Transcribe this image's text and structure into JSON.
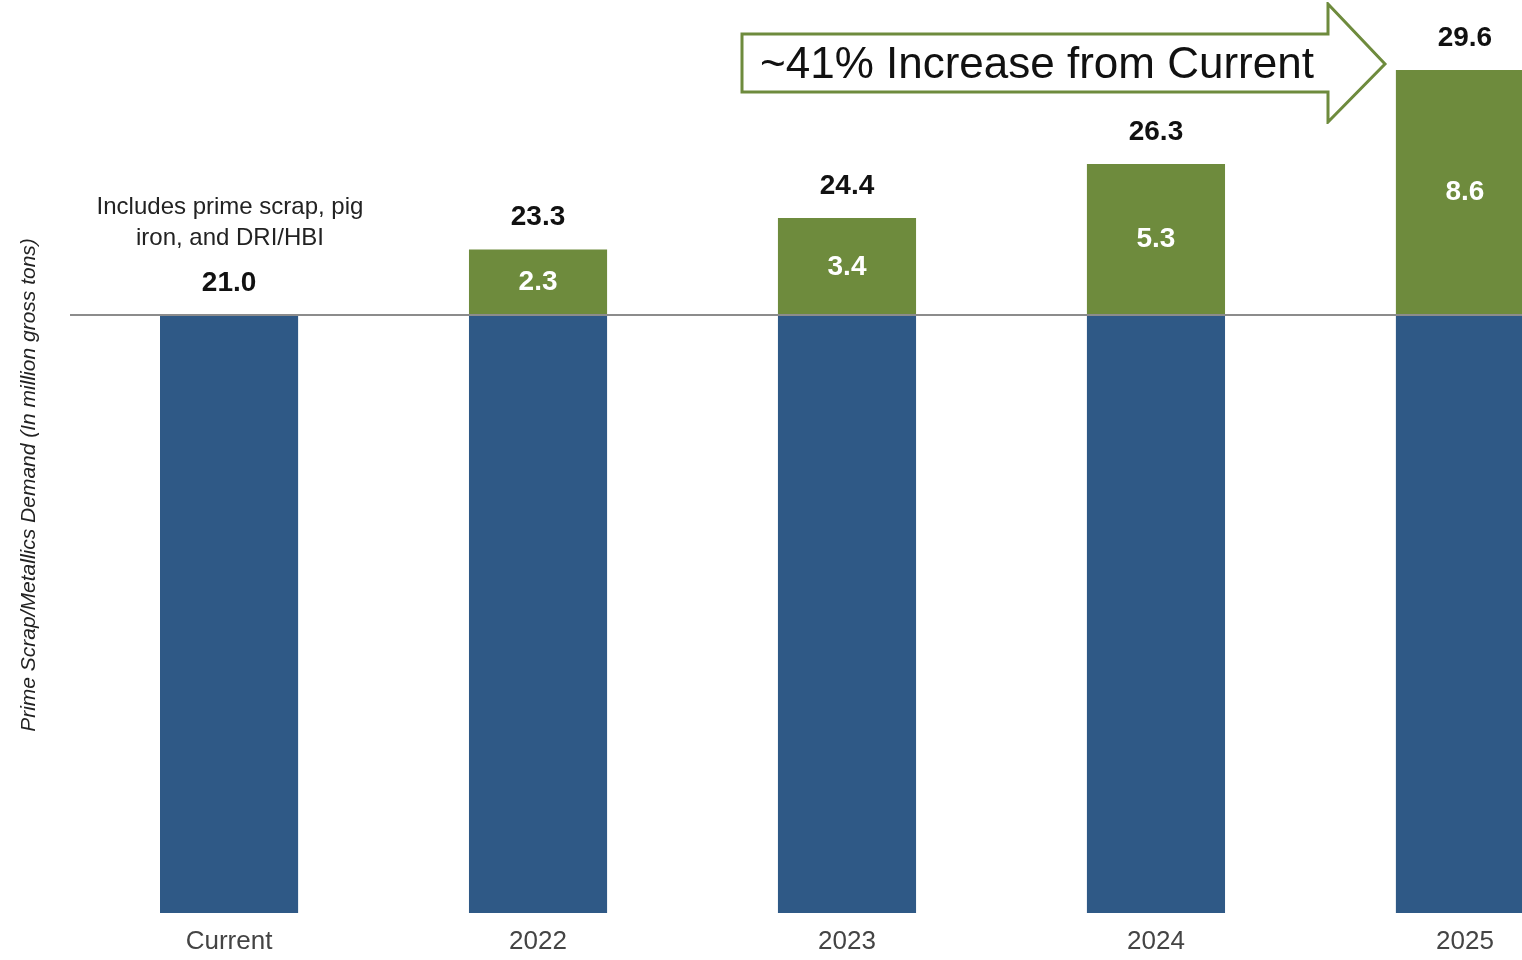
{
  "chart_data": {
    "type": "bar",
    "stacked": true,
    "ylabel": "Prime Scrap/Metallics Demand (In million gross tons)",
    "categories": [
      "Current",
      "2022",
      "2023",
      "2024",
      "2025"
    ],
    "series": [
      {
        "color": "#2f5986",
        "values": [
          21.0,
          21.0,
          21.0,
          21.0,
          21.0
        ]
      },
      {
        "color": "#6e8b3d",
        "values": [
          null,
          2.3,
          3.4,
          5.3,
          8.6
        ],
        "value_labels": [
          null,
          "2.3",
          "3.4",
          "5.3",
          "8.6"
        ]
      }
    ],
    "totals": [
      "21.0",
      "23.3",
      "24.4",
      "26.3",
      "29.6"
    ],
    "tick_labels": "x",
    "ref_lines": [
      {
        "axis": "y",
        "value": 21.0,
        "color": "#8c8c8c"
      }
    ],
    "annotations": [
      "~41% Increase from Current",
      "Includes prime scrap, pig iron, and DRI/HBI"
    ]
  }
}
